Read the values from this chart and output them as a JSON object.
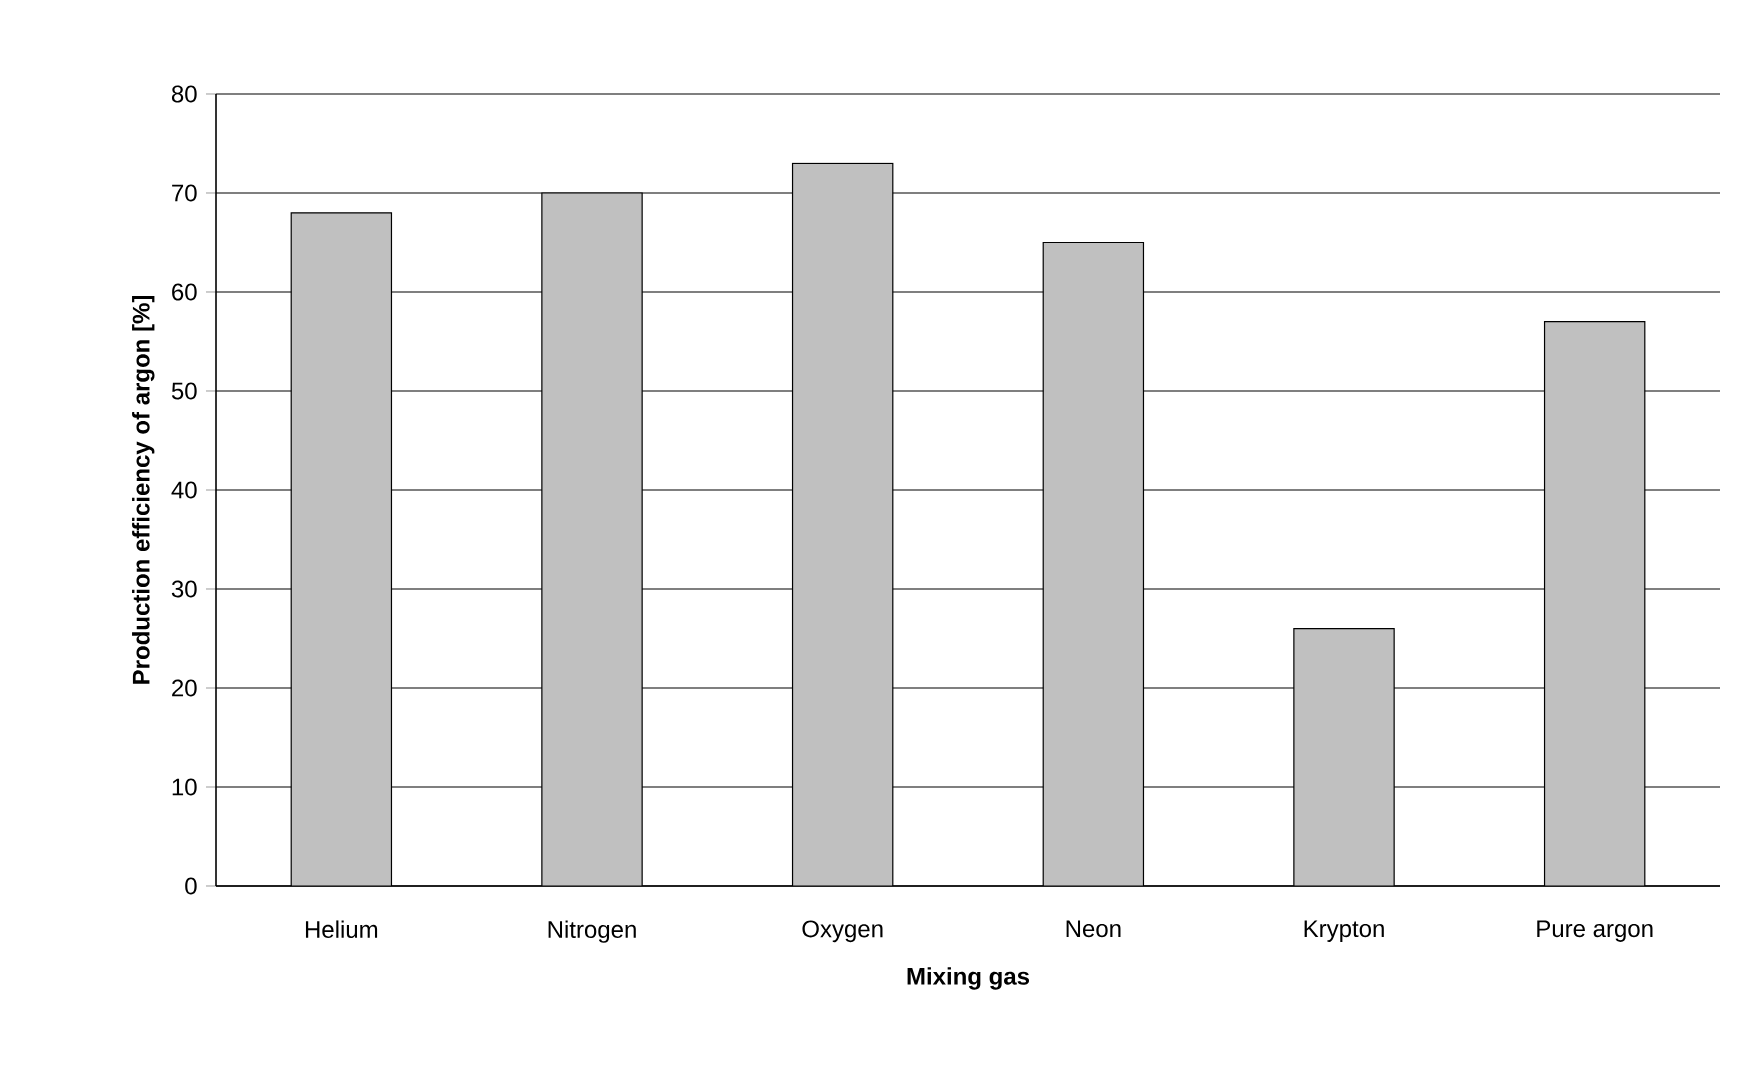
{
  "chart_data": {
    "type": "bar",
    "xlabel": "Mixing gas",
    "ylabel": "Production efficiency of argon [%]",
    "categories": [
      "Helium",
      "Nitrogen",
      "Oxygen",
      "Neon",
      "Krypton",
      "Pure argon"
    ],
    "values": [
      68,
      70,
      73,
      65,
      26,
      57
    ],
    "color": "#c0c0c0",
    "ylim": [
      0,
      80
    ],
    "yticks": [
      0,
      10,
      20,
      30,
      40,
      50,
      60,
      70,
      80
    ],
    "grid": "y"
  }
}
